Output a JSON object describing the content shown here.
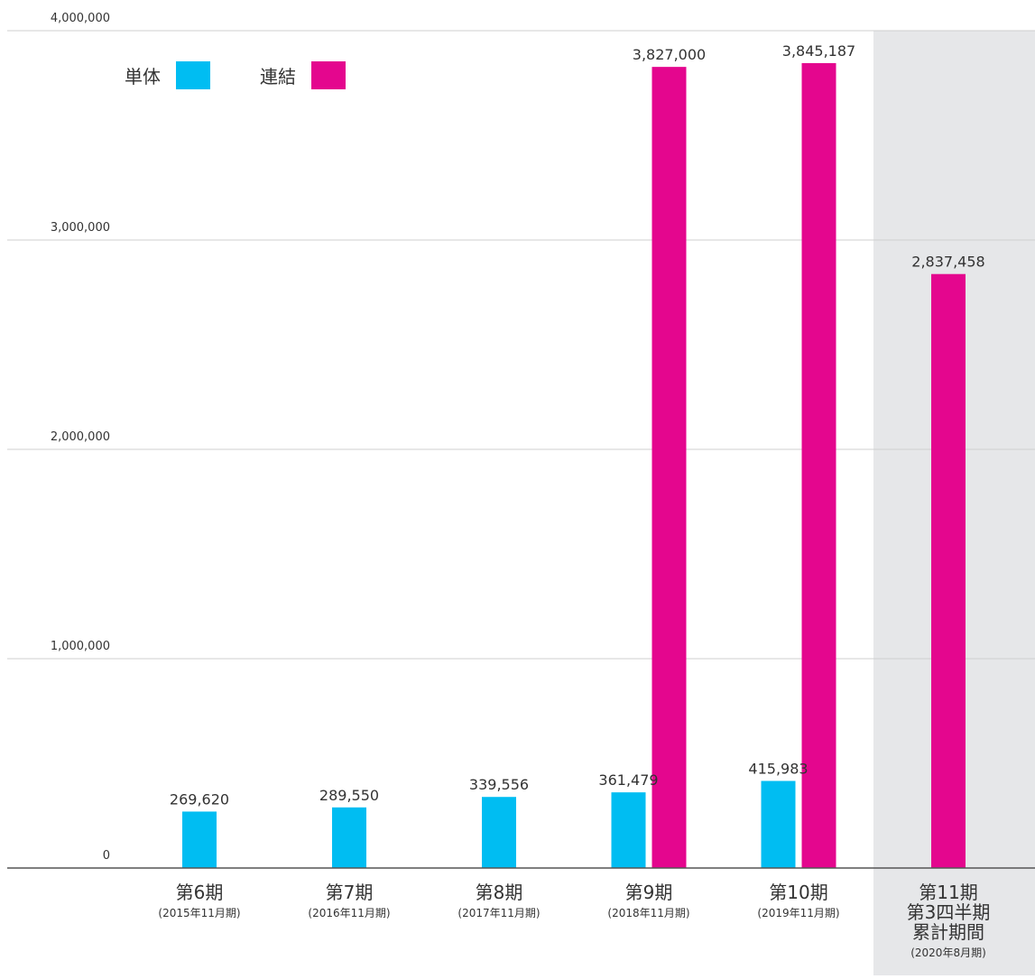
{
  "chart_data": {
    "type": "bar",
    "categories": [
      {
        "label": "第6期",
        "sub": "(2015年11月期)"
      },
      {
        "label": "第7期",
        "sub": "(2016年11月期)"
      },
      {
        "label": "第8期",
        "sub": "(2017年11月期)"
      },
      {
        "label": "第9期",
        "sub": "(2018年11月期)"
      },
      {
        "label": "第10期",
        "sub": "(2019年11月期)"
      },
      {
        "label": "第11期\n第3四半期\n累計期間",
        "sub": "(2020年8月期)"
      }
    ],
    "series": [
      {
        "name": "単体",
        "color": "#00BDF2",
        "values": [
          269620,
          289550,
          339556,
          361479,
          415983,
          null
        ],
        "labels": [
          "269,620",
          "289,550",
          "339,556",
          "361,479",
          "415,983",
          null
        ]
      },
      {
        "name": "連結",
        "color": "#E4068E",
        "values": [
          null,
          null,
          null,
          3827000,
          3845187,
          2837458
        ],
        "labels": [
          null,
          null,
          null,
          "3,827,000",
          "3,845,187",
          "2,837,458"
        ]
      }
    ],
    "yticks": [
      {
        "value": 0,
        "label": "0"
      },
      {
        "value": 1000000,
        "label": "1,000,000"
      },
      {
        "value": 2000000,
        "label": "2,000,000"
      },
      {
        "value": 3000000,
        "label": "3,000,000"
      },
      {
        "value": 4000000,
        "label": "4,000,000"
      }
    ],
    "ylim": [
      0,
      4000000
    ],
    "grid": true,
    "highlight_category_index": 5,
    "highlight_color": "#E6E7E9",
    "legend_position": "top-left",
    "title": "",
    "xlabel": "",
    "ylabel": ""
  }
}
